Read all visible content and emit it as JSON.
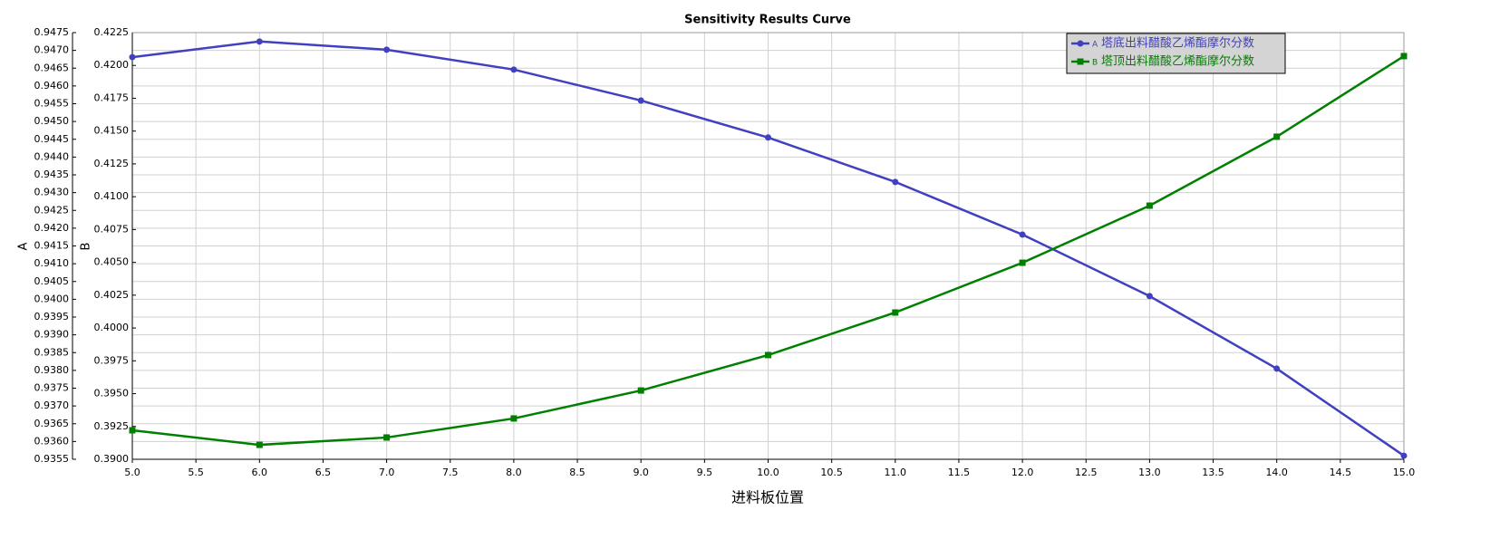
{
  "chart_data": {
    "type": "line",
    "title": "Sensitivity Results Curve",
    "xlabel": "进料板位置",
    "ylabel": "A",
    "y2label": "B",
    "x": [
      5,
      6,
      7,
      8,
      9,
      10,
      11,
      12,
      13,
      14,
      15
    ],
    "series": [
      {
        "name": "塔底出料醋酸乙烯酯摩尔分数",
        "color": "#4040c0",
        "marker": "circle",
        "axis": "y",
        "values": [
          0.94681,
          0.94725,
          0.94702,
          0.94646,
          0.94559,
          0.94455,
          0.9433,
          0.94182,
          0.94009,
          0.93805,
          0.9356
        ]
      },
      {
        "name": "塔顶出料醋酸乙烯酯摩尔分数",
        "color": "#008000",
        "marker": "square",
        "axis": "y2",
        "values": [
          0.39221,
          0.3911,
          0.39166,
          0.39311,
          0.39524,
          0.39794,
          0.40118,
          0.40497,
          0.40932,
          0.41457,
          0.42071
        ]
      }
    ],
    "xlim": [
      5,
      15
    ],
    "xticks": [
      {
        "value": 5,
        "label": "5.0"
      },
      5.5,
      {
        "value": 6,
        "label": "6.0"
      },
      6.5,
      {
        "value": 7,
        "label": "7.0"
      },
      7.5,
      {
        "value": 8,
        "label": "8.0"
      },
      8.5,
      {
        "value": 9,
        "label": "9.0"
      },
      9.5,
      {
        "value": 10,
        "label": "10.0"
      },
      10.5,
      {
        "value": 11,
        "label": "11.0"
      },
      11.5,
      {
        "value": 12,
        "label": "12.0"
      },
      12.5,
      {
        "value": 13,
        "label": "13.0"
      },
      13.5,
      {
        "value": 14,
        "label": "14.0"
      },
      14.5,
      {
        "value": 15,
        "label": "15.0"
      }
    ],
    "ylim": [
      0.9355,
      0.9475
    ],
    "yticks": [
      0.9355,
      {
        "value": 0.936,
        "label": "0.9360"
      },
      0.9365,
      {
        "value": 0.937,
        "label": "0.9370"
      },
      0.9375,
      {
        "value": 0.938,
        "label": "0.9380"
      },
      0.9385,
      {
        "value": 0.939,
        "label": "0.9390"
      },
      0.9395,
      {
        "value": 0.94,
        "label": "0.9400"
      },
      0.9405,
      {
        "value": 0.941,
        "label": "0.9410"
      },
      0.9415,
      {
        "value": 0.942,
        "label": "0.9420"
      },
      0.9425,
      {
        "value": 0.943,
        "label": "0.9430"
      },
      0.9435,
      {
        "value": 0.944,
        "label": "0.9440"
      },
      0.9445,
      {
        "value": 0.945,
        "label": "0.9450"
      },
      0.9455,
      {
        "value": 0.946,
        "label": "0.9460"
      },
      0.9465,
      {
        "value": 0.947,
        "label": "0.9470"
      },
      0.9475
    ],
    "y2lim": [
      0.39,
      0.4225
    ],
    "y2ticks": [
      {
        "value": 0.39,
        "label": "0.3900"
      },
      0.3925,
      {
        "value": 0.395,
        "label": "0.3950"
      },
      0.3975,
      {
        "value": 0.4,
        "label": "0.4000"
      },
      0.4025,
      {
        "value": 0.405,
        "label": "0.4050"
      },
      0.4075,
      {
        "value": 0.41,
        "label": "0.4100"
      },
      0.4125,
      {
        "value": 0.415,
        "label": "0.4150"
      },
      0.4175,
      {
        "value": 0.42,
        "label": "0.4200"
      },
      0.4225
    ],
    "grid": true,
    "legend": "upper right"
  }
}
